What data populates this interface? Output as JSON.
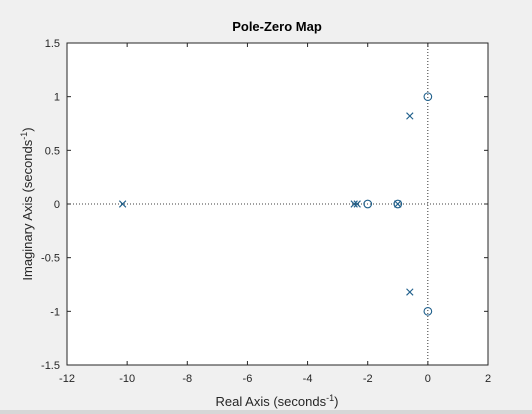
{
  "colors": {
    "marker": "#1f5f8b",
    "axis": "#262626",
    "figure_bg": "#f0f0f0",
    "plot_bg": "#ffffff"
  },
  "chart_data": {
    "type": "scatter",
    "title": "Pole-Zero Map",
    "xlabel": {
      "base": "Real Axis (seconds",
      "sup": "-1",
      "end": ")"
    },
    "ylabel": {
      "base": "Imaginary Axis (seconds",
      "sup": "-1",
      "end": ")"
    },
    "xlim": [
      -12,
      2
    ],
    "ylim": [
      -1.5,
      1.5
    ],
    "xticks": [
      -12,
      -10,
      -8,
      -6,
      -4,
      -2,
      0,
      2
    ],
    "yticks": [
      -1.5,
      -1,
      -0.5,
      0,
      0.5,
      1,
      1.5
    ],
    "xtick_labels": [
      "-12",
      "-10",
      "-8",
      "-6",
      "-4",
      "-2",
      "0",
      "2"
    ],
    "ytick_labels": [
      "-1.5",
      "-1",
      "-0.5",
      "0",
      "0.5",
      "1",
      "1.5"
    ],
    "grid": false,
    "reference_lines": {
      "x": 0,
      "y": 0,
      "style": "dotted"
    },
    "series": [
      {
        "marker": "x",
        "x": [
          -10.15,
          -2.45,
          -2.35,
          -1.0,
          -0.6,
          -0.6
        ],
        "y": [
          0,
          0,
          0,
          0,
          0.82,
          -0.82
        ]
      },
      {
        "marker": "o",
        "x": [
          -2.0,
          -1.0,
          0,
          0
        ],
        "y": [
          0,
          0,
          1,
          -1
        ]
      }
    ]
  }
}
